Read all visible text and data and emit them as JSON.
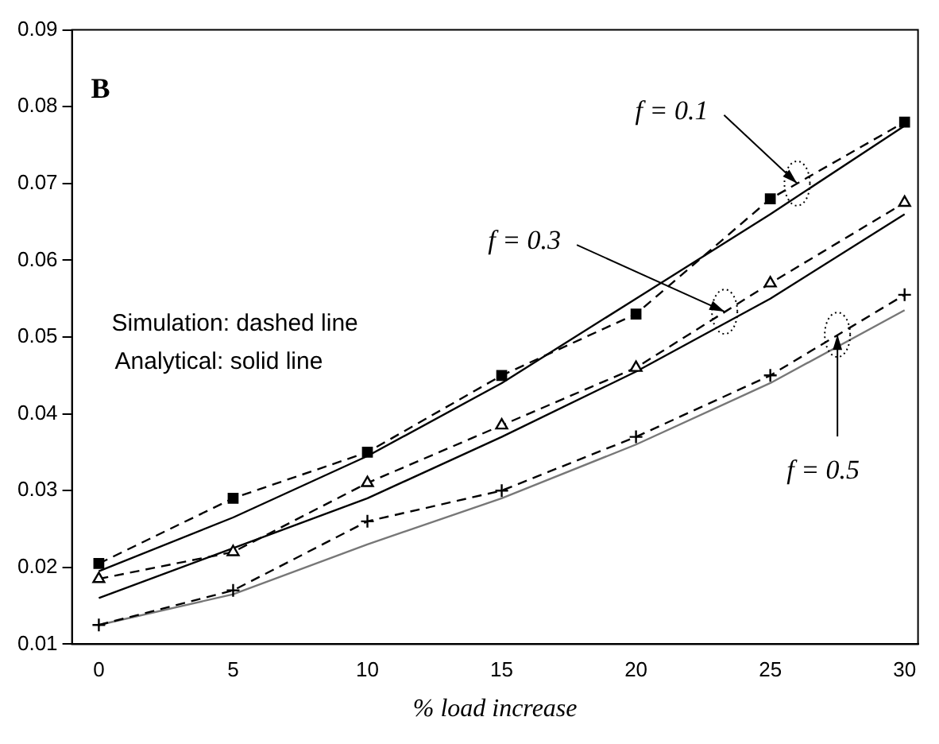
{
  "chart_data": {
    "type": "line",
    "xlabel": "% load increase",
    "xlim": [
      -1,
      30.5
    ],
    "ylim": [
      0.01,
      0.09
    ],
    "xticks": [
      0,
      5,
      10,
      15,
      20,
      25,
      30
    ],
    "yticks": [
      0.01,
      0.02,
      0.03,
      0.04,
      0.05,
      0.06,
      0.07,
      0.08,
      0.09
    ],
    "grid": false,
    "legend": false,
    "x": [
      0,
      5,
      10,
      15,
      20,
      25,
      30
    ],
    "series": [
      {
        "color": "#000000",
        "marker": "square",
        "line_style": "dashed",
        "values": [
          0.0205,
          0.029,
          0.035,
          0.045,
          0.053,
          0.068,
          0.078
        ]
      },
      {
        "color": "#000000",
        "marker": "triangle",
        "line_style": "dashed",
        "values": [
          0.0185,
          0.022,
          0.031,
          0.0385,
          0.046,
          0.057,
          0.0675
        ]
      },
      {
        "color": "#000000",
        "marker": "cross",
        "line_style": "dashed",
        "values": [
          0.0125,
          0.017,
          0.026,
          0.03,
          0.037,
          0.045,
          0.0555
        ]
      },
      {
        "color": "#000000",
        "marker": "none",
        "line_style": "solid",
        "values": [
          0.0195,
          0.0265,
          0.0345,
          0.044,
          0.055,
          0.066,
          0.0775
        ]
      },
      {
        "color": "#000000",
        "marker": "none",
        "line_style": "solid",
        "values": [
          0.016,
          0.0225,
          0.029,
          0.037,
          0.0455,
          0.055,
          0.066
        ]
      },
      {
        "color": "#777777",
        "marker": "none",
        "line_style": "solid",
        "values": [
          0.0125,
          0.0165,
          0.023,
          0.029,
          0.036,
          0.044,
          0.0535
        ]
      }
    ],
    "annotations": [
      "B",
      "Simulation: dashed line",
      "Analytical: solid line",
      {
        "text": "f = 0.1",
        "x": 26,
        "y": 0.07
      },
      {
        "text": "f = 0.3",
        "x": 23.3,
        "y": 0.0533
      },
      {
        "text": "f = 0.5",
        "x": 27.5,
        "y": 0.0503
      }
    ]
  }
}
